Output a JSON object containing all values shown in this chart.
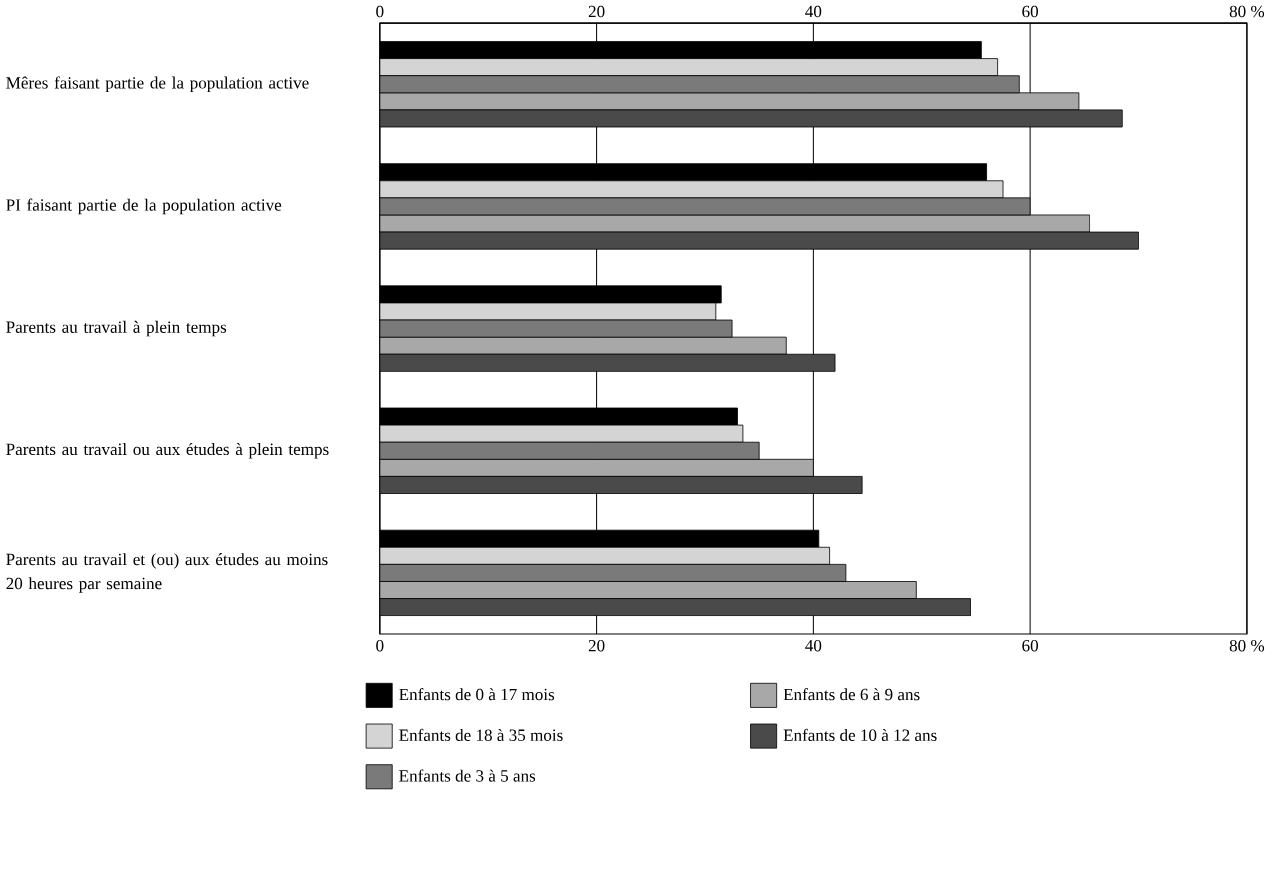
{
  "chart_data": {
    "type": "bar",
    "orientation": "horizontal",
    "categories": [
      "Mêres faisant partie de la population active",
      "PI faisant partie de la population active",
      "Parents au travail à plein temps",
      "Parents au travail ou aux études à plein temps",
      "Parents au travail et (ou) aux études au moins 20 heures par semaine"
    ],
    "series": [
      {
        "name": "Enfants de 0 à 17 mois",
        "color": "#000000",
        "values": [
          55.5,
          56,
          31.5,
          33,
          40.5
        ]
      },
      {
        "name": "Enfants de 18 à 35 mois",
        "color": "#d4d4d4",
        "values": [
          57,
          57.5,
          31,
          33.5,
          41.5
        ]
      },
      {
        "name": "Enfants de 3 à 5 ans",
        "color": "#7a7a7a",
        "values": [
          59,
          60,
          32.5,
          35,
          43
        ]
      },
      {
        "name": "Enfants de 6 à 9 ans",
        "color": "#a8a8a8",
        "values": [
          64.5,
          65.5,
          37.5,
          40,
          49.5
        ]
      },
      {
        "name": "Enfants de 10 à 12 ans",
        "color": "#4a4a4a",
        "values": [
          68.5,
          70,
          42,
          44.5,
          54.5
        ]
      }
    ],
    "xlim": [
      0,
      80
    ],
    "xticks": [
      0,
      20,
      40,
      60,
      {
        "value": 80,
        "label": "80 %"
      }
    ],
    "x2lim": [
      0,
      80
    ],
    "x2ticks": [
      0,
      20,
      40,
      60,
      {
        "value": 80,
        "label": "80 %"
      }
    ],
    "grid": "x",
    "legend": "bottom"
  }
}
